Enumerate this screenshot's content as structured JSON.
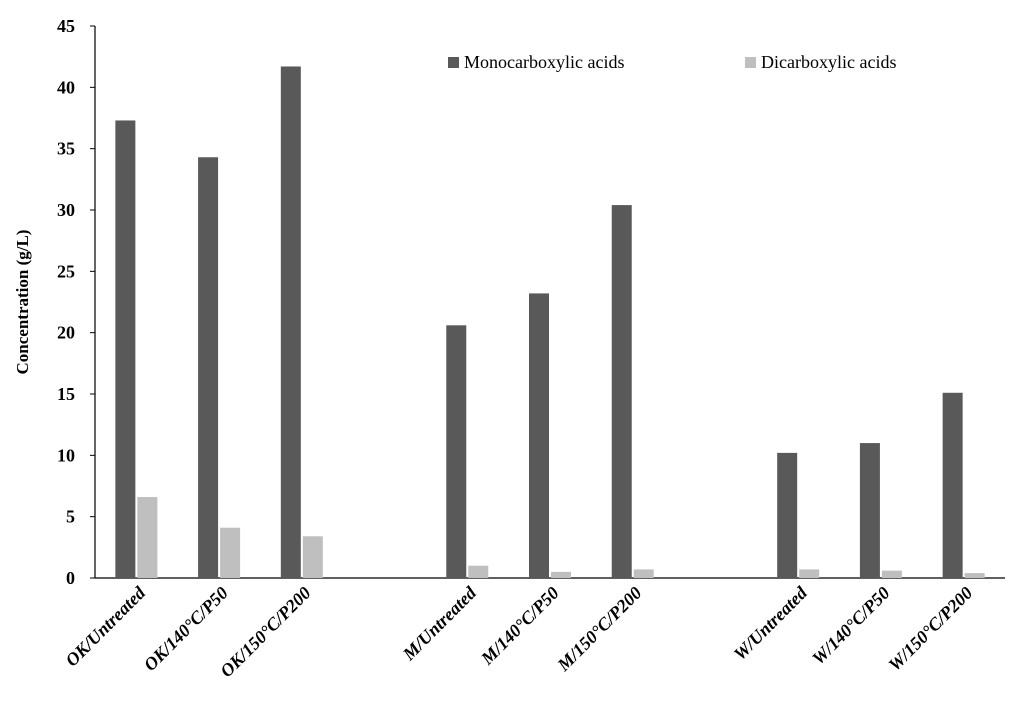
{
  "chart_data": {
    "type": "bar",
    "categories": [
      "OK/Untreated",
      "OK/140°C/P50",
      "OK/150°C/P200",
      "M/Untreated",
      "M/140°C/P50",
      "M/150°C/P200",
      "W/Untreated",
      "W/140°C/P50",
      "W/150°C/P200"
    ],
    "series": [
      {
        "name": "Monocarboxylic acids",
        "color": "#595959",
        "values": [
          37.3,
          34.3,
          41.7,
          20.6,
          23.2,
          30.4,
          10.2,
          11.0,
          15.1
        ]
      },
      {
        "name": "Dicarboxylic acids",
        "color": "#bfbfbf",
        "values": [
          6.6,
          4.1,
          3.4,
          1.0,
          0.5,
          0.7,
          0.7,
          0.6,
          0.4
        ]
      }
    ],
    "title": "",
    "xlabel": "",
    "ylabel": "Concentration (g/L)",
    "ylim": [
      0,
      45
    ],
    "yticks": [
      0,
      5,
      10,
      15,
      20,
      25,
      30,
      35,
      40,
      45
    ],
    "grid": false,
    "legend_position": "top-right"
  }
}
